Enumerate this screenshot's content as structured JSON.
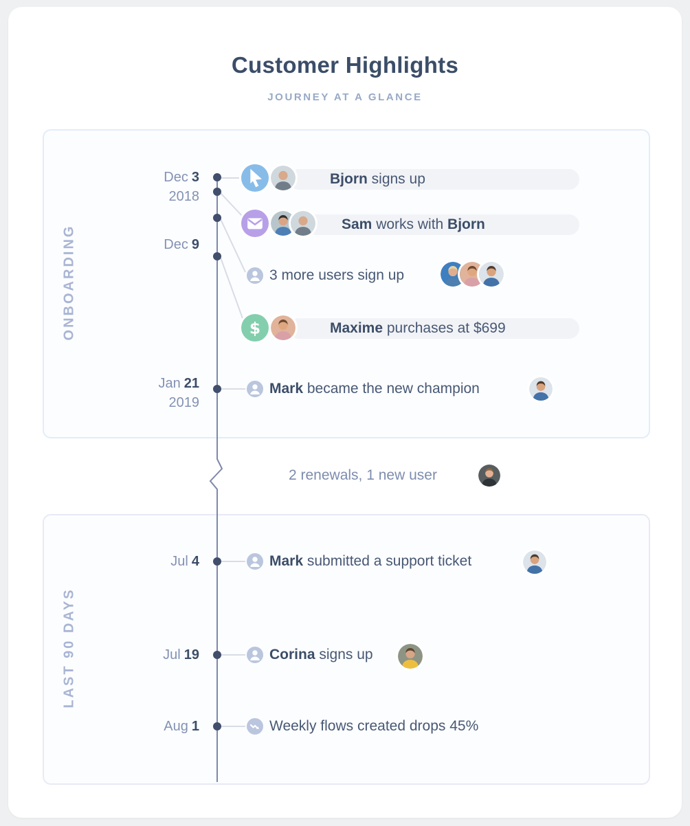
{
  "header": {
    "title": "Customer Highlights",
    "subtitle": "JOURNEY AT A GLANCE"
  },
  "sections": {
    "onboarding": {
      "label": "ONBOARDING"
    },
    "last90": {
      "label": "LAST 90 DAYS"
    }
  },
  "events": [
    {
      "id": "bjorn-signup",
      "month": "Dec",
      "day": "3",
      "year": "2018",
      "name": "Bjorn",
      "rest": " signs up",
      "icon": "cursor-icon"
    },
    {
      "id": "sam-works",
      "name": "Sam",
      "mid": " works with ",
      "name2": "Bjorn",
      "icon": "envelope-icon"
    },
    {
      "id": "more-users",
      "text": "3 more users sign up",
      "icon": "user-icon"
    },
    {
      "id": "maxime-purchase",
      "month": "Dec",
      "day": "9",
      "name": "Maxime",
      "rest": " purchases at $699",
      "icon": "dollar-icon"
    },
    {
      "id": "mark-champion",
      "month": "Jan",
      "day": "21",
      "year": "2019",
      "name": "Mark",
      "rest": " became the new champion",
      "icon": "user-icon"
    },
    {
      "id": "mark-ticket",
      "month": "Jul",
      "day": "4",
      "name": "Mark",
      "rest": " submitted a support ticket",
      "icon": "user-icon"
    },
    {
      "id": "corina-signup",
      "month": "Jul",
      "day": "19",
      "name": "Corina",
      "rest": " signs up",
      "icon": "user-icon"
    },
    {
      "id": "flows-drop",
      "month": "Aug",
      "day": "1",
      "text": "Weekly flows created drops 45%",
      "icon": "trend-down-icon"
    }
  ],
  "interlude": {
    "text": "2 renewals, 1 new user"
  },
  "colors": {
    "title": "#3b4d68",
    "subtitle": "#97a9c6",
    "section_label": "#a9b5d3",
    "onboarding_border": "#e2edf9",
    "last90_border": "#e9e9f6",
    "timeline_line": "#7e88a9",
    "timeline_dot": "#414e6c",
    "connector": "#d8dce4",
    "pill_bg": "#f2f3f6",
    "cursor_icon_bg": "#87bce9",
    "envelope_icon_bg": "#b7a0e8",
    "dollar_icon_bg": "#83cfad",
    "muted_icon_bg": "#bac6de"
  },
  "avatars": {
    "bjorn": {
      "bg": "#cfd8dd",
      "skin": "#d8a98a",
      "shirt": "#717d89",
      "hair": ""
    },
    "sam": {
      "bg": "#b8c6cc",
      "skin": "#d8a585",
      "shirt": "#4d7fb5",
      "hair": "#33302c"
    },
    "woman1": {
      "bg": "#3e7fc0",
      "skin": "#dfae8e",
      "shirt": "#4d7fb0",
      "hair": "#e6d3a3"
    },
    "maxime": {
      "bg": "#e0b39a",
      "skin": "#dfa77f",
      "shirt": "#d9a0a8",
      "hair": "#6e4a2f"
    },
    "mark": {
      "bg": "#dce3ea",
      "skin": "#d9a37f",
      "shirt": "#4272a8",
      "hair": "#503a28"
    },
    "renewal_woman": {
      "bg": "#585d60",
      "skin": "#e2b193",
      "shirt": "#2e3338",
      "hair": "#8a6845"
    },
    "corina": {
      "bg": "#8d9484",
      "skin": "#d9a587",
      "shirt": "#eebf3f",
      "hair": "#5a4632"
    }
  }
}
